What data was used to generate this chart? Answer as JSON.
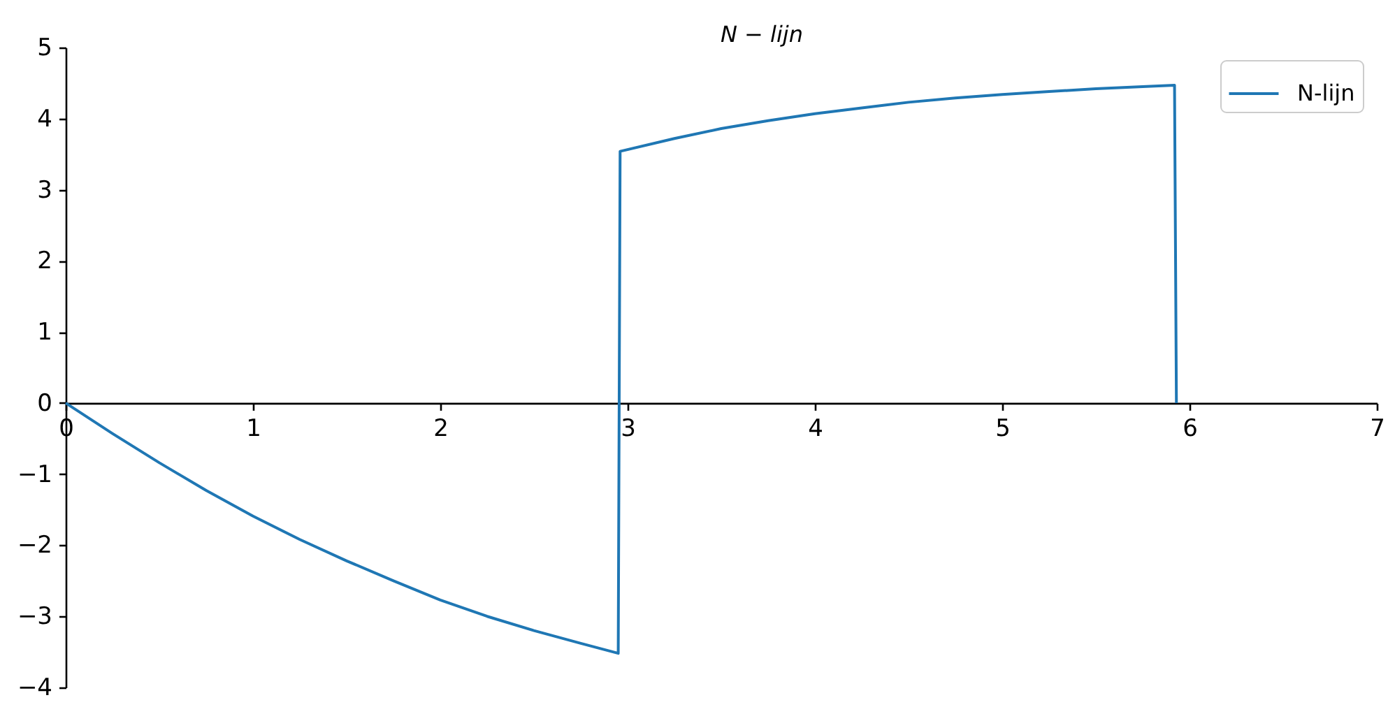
{
  "chart_data": {
    "type": "line",
    "title": "N − lijn",
    "x": [
      0,
      0.25,
      0.5,
      0.75,
      1,
      1.25,
      1.5,
      1.75,
      2,
      2.25,
      2.5,
      2.75,
      2.95,
      2.96,
      3.25,
      3.5,
      3.75,
      4,
      4.25,
      4.5,
      4.75,
      5,
      5.25,
      5.5,
      5.75,
      5.92,
      5.93
    ],
    "series": [
      {
        "name": "N-lijn",
        "color": "#1f77b4",
        "values": [
          0,
          -0.43,
          -0.84,
          -1.23,
          -1.59,
          -1.92,
          -2.22,
          -2.5,
          -2.77,
          -3,
          -3.2,
          -3.38,
          -3.52,
          3.54,
          3.72,
          3.86,
          3.97,
          4.07,
          4.15,
          4.23,
          4.29,
          4.34,
          4.38,
          4.42,
          4.45,
          4.47,
          0
        ]
      }
    ],
    "xlim": [
      0,
      7
    ],
    "ylim": [
      -4,
      5
    ],
    "xticks": [
      0,
      1,
      2,
      3,
      4,
      5,
      6,
      7
    ],
    "yticks": [
      -4,
      -3,
      -2,
      -1,
      0,
      1,
      2,
      3,
      4,
      5
    ],
    "grid": false,
    "legend": "top right",
    "marker": "none",
    "line_style": "solid"
  }
}
